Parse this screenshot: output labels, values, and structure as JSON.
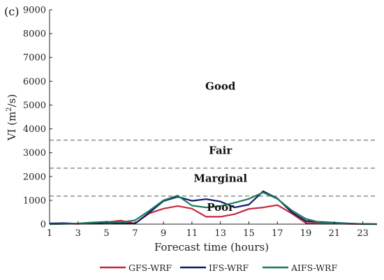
{
  "panel_label": "(c)",
  "chart_data": {
    "type": "line",
    "xlabel": "Forecast time (hours)",
    "ylabel": "VI (m²/s)",
    "ylabel_parts": {
      "base": "VI (m",
      "sup": "2",
      "tail": "/s)"
    },
    "xlim": [
      1,
      24
    ],
    "ylim": [
      0,
      9000
    ],
    "x_ticks": [
      1,
      3,
      5,
      7,
      9,
      11,
      13,
      15,
      17,
      19,
      21,
      23
    ],
    "y_ticks": [
      0,
      1000,
      2000,
      3000,
      4000,
      5000,
      6000,
      7000,
      8000,
      9000
    ],
    "thresholds": [
      1175,
      2350,
      3525
    ],
    "zones": [
      {
        "label": "Good",
        "x": 13,
        "y": 5650
      },
      {
        "label": "Fair",
        "x": 13,
        "y": 2950
      },
      {
        "label": "Marginal",
        "x": 13,
        "y": 1780
      },
      {
        "label": "Poor",
        "x": 13,
        "y": 560
      }
    ],
    "x": [
      1,
      2,
      3,
      4,
      5,
      6,
      7,
      8,
      9,
      10,
      11,
      12,
      13,
      14,
      15,
      16,
      17,
      18,
      19,
      20,
      21,
      22,
      23,
      24
    ],
    "series": [
      {
        "name": "GFS-WRF",
        "color": "#c8283c",
        "values": [
          0,
          20,
          10,
          60,
          80,
          150,
          30,
          450,
          650,
          760,
          650,
          310,
          310,
          420,
          640,
          700,
          800,
          450,
          50,
          30,
          20,
          10,
          0,
          0
        ]
      },
      {
        "name": "IFS-WRF",
        "color": "#0a1a6e",
        "values": [
          30,
          40,
          20,
          20,
          60,
          40,
          20,
          480,
          970,
          1150,
          980,
          1050,
          950,
          700,
          820,
          1380,
          1080,
          500,
          130,
          90,
          60,
          30,
          10,
          0
        ]
      },
      {
        "name": "AIFS-WRF",
        "color": "#1f7a5a",
        "values": [
          0,
          10,
          30,
          70,
          100,
          80,
          160,
          560,
          1000,
          1200,
          780,
          700,
          760,
          900,
          1060,
          1330,
          1060,
          580,
          220,
          70,
          40,
          20,
          10,
          0
        ]
      }
    ]
  }
}
